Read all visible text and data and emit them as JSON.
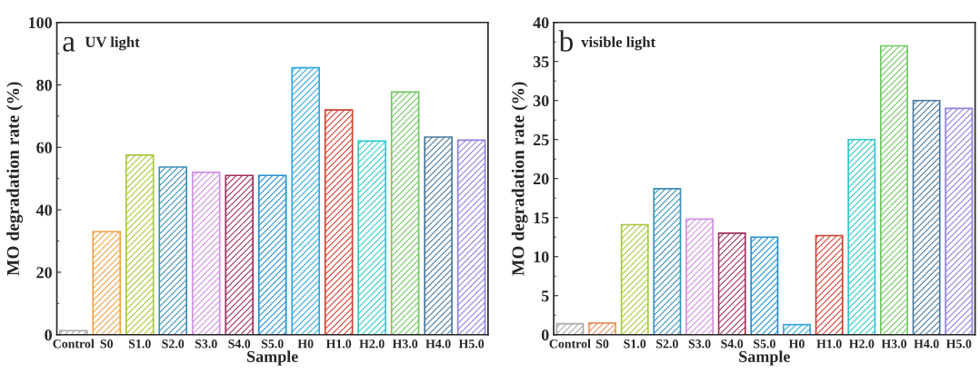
{
  "chart_data": [
    {
      "type": "bar",
      "title": "UV light",
      "annotations": [
        "a"
      ],
      "xlabel": "Sample",
      "ylabel": "MO degradation rate (%)",
      "categories": [
        "Control",
        "S0",
        "S1.0",
        "S2.0",
        "S3.0",
        "S4.0",
        "S5.0",
        "H0",
        "H1.0",
        "H2.0",
        "H3.0",
        "H4.0",
        "H5.0"
      ],
      "values": [
        1.3,
        33,
        57.5,
        53.7,
        52,
        51,
        51,
        85.5,
        72,
        62,
        77.7,
        63.3,
        62.3
      ],
      "colors": [
        "#a8a8a8",
        "#f0a048",
        "#a8c840",
        "#3a90b8",
        "#d090e0",
        "#a03060",
        "#2090d0",
        "#30a8e0",
        "#d04030",
        "#30c8c8",
        "#70c860",
        "#4878a0",
        "#9080e0"
      ],
      "ylim": [
        0,
        100
      ],
      "yticks": [
        0,
        20,
        40,
        60,
        80,
        100
      ],
      "grid": false
    },
    {
      "type": "bar",
      "title": "visible light",
      "annotations": [
        "b"
      ],
      "xlabel": "Sample",
      "ylabel": "MO degradation rate (%)",
      "categories": [
        "Control",
        "S0",
        "S1.0",
        "S2.0",
        "S3.0",
        "S4.0",
        "S5.0",
        "H0",
        "H1.0",
        "H2.0",
        "H3.0",
        "H4.0",
        "H5.0"
      ],
      "values": [
        1.4,
        1.5,
        14.1,
        18.7,
        14.8,
        13,
        12.5,
        1.3,
        12.7,
        25,
        37,
        30,
        29
      ],
      "colors": [
        "#a8a8a8",
        "#e89060",
        "#a8c840",
        "#3a90b8",
        "#d090e0",
        "#a03060",
        "#2090d0",
        "#30a8e0",
        "#d04030",
        "#30c8c8",
        "#70c860",
        "#4878a0",
        "#9080e0"
      ],
      "ylim": [
        0,
        40
      ],
      "yticks": [
        0,
        5,
        10,
        15,
        20,
        25,
        30,
        35,
        40
      ],
      "grid": false
    }
  ]
}
